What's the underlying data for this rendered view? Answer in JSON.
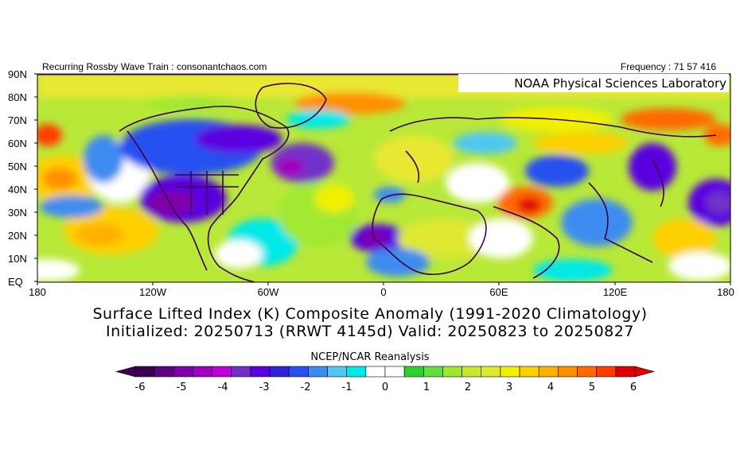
{
  "header": {
    "left": "Recurring Rossby Wave Train : consonantchaos.com",
    "right": "Frequency : 71 57 416",
    "lab_label": "NOAA Physical Sciences Laboratory"
  },
  "axes": {
    "lat_labels": [
      "90N",
      "80N",
      "70N",
      "60N",
      "50N",
      "40N",
      "30N",
      "20N",
      "10N",
      "EQ"
    ],
    "lon_labels": [
      "180",
      "120W",
      "60W",
      "0",
      "60E",
      "120E",
      "180"
    ]
  },
  "title": {
    "line1": "Surface Lifted Index (K) Composite Anomaly (1991-2020 Climatology)",
    "line2": "Initialized: 20250713 (RRWT 4145d) Valid: 20250823 to 20250827"
  },
  "source": "NCEP/NCAR Reanalysis",
  "colorbar": {
    "ticks": [
      "-6",
      "-5",
      "-4",
      "-3",
      "-2",
      "-1",
      "0",
      "1",
      "2",
      "3",
      "4",
      "5",
      "6"
    ],
    "colors": [
      "#3c0050",
      "#5e0080",
      "#8000a8",
      "#a000c0",
      "#c000d8",
      "#7030c8",
      "#5a00e0",
      "#3020d8",
      "#2850f0",
      "#3c8cf0",
      "#50c8f0",
      "#00e8e8",
      "#ffffff",
      "#ffffff",
      "#30d030",
      "#60e040",
      "#a0e830",
      "#c8e830",
      "#e0e830",
      "#f0f000",
      "#ffd000",
      "#ffb000",
      "#ff9000",
      "#ff6a00",
      "#ff3c00",
      "#e00000"
    ]
  }
}
